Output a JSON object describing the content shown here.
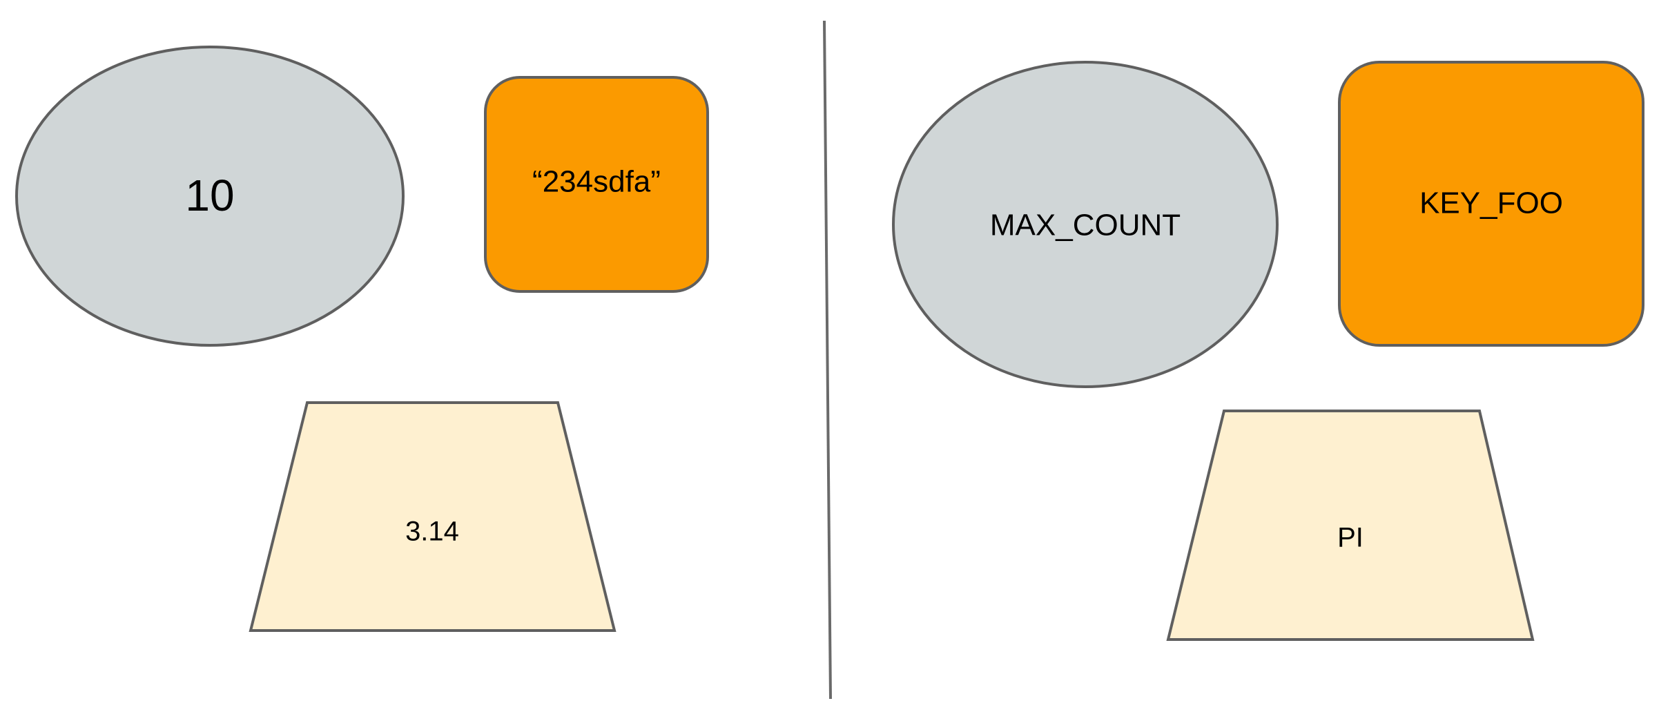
{
  "colors": {
    "ellipse_fill": "#d0d6d7",
    "rounded_rect_fill": "#fb9a00",
    "trapezoid_fill": "#fef0d0",
    "outline": "#5f5f5f",
    "divider": "#6a6a6a"
  },
  "left_panel": {
    "ellipse_label": "10",
    "rounded_rect_label": "“234sdfa”",
    "trapezoid_label": "3.14"
  },
  "right_panel": {
    "ellipse_label": "MAX_COUNT",
    "rounded_rect_label": "KEY_FOO",
    "trapezoid_label": "PI"
  }
}
